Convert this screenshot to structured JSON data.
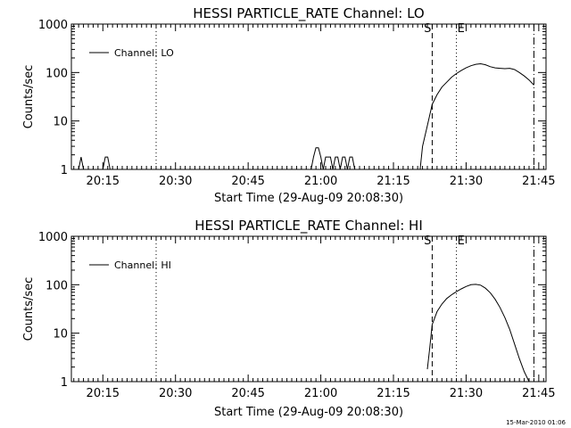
{
  "footer": {
    "timestamp": "15-Mar-2010 01:06"
  },
  "chart_data": [
    {
      "type": "line",
      "title": "HESSI PARTICLE_RATE Channel: LO",
      "xlabel": "Start Time (29-Aug-09 20:08:30)",
      "ylabel": "Counts/sec",
      "yscale": "log",
      "xlim": [
        "20:08:30",
        "21:46:30"
      ],
      "ylim": [
        1,
        1000
      ],
      "xticks": [
        "20:15",
        "20:30",
        "20:45",
        "21:00",
        "21:15",
        "21:30",
        "21:45"
      ],
      "yticks": [
        "1",
        "10",
        "100",
        "1000"
      ],
      "grid": false,
      "legend": {
        "position": "top-left",
        "label": "Channel: LO"
      },
      "markers": [
        {
          "time": "20:26:00",
          "style": "dotted",
          "label": ""
        },
        {
          "time": "21:23:00",
          "style": "dashed",
          "label": "S"
        },
        {
          "time": "21:28:00",
          "style": "dotted",
          "label": "E"
        },
        {
          "time": "21:44:00",
          "style": "dashdot",
          "label": ""
        }
      ],
      "series": [
        {
          "name": "Channel: LO",
          "x": [
            "20:10:00",
            "20:10:30",
            "20:11:00",
            "20:15:00",
            "20:15:30",
            "20:16:00",
            "20:16:30",
            "20:58:00",
            "20:58:30",
            "20:59:00",
            "20:59:30",
            "21:00:00",
            "21:00:30",
            "21:01:00",
            "21:01:30",
            "21:02:00",
            "21:02:30",
            "21:03:00",
            "21:03:30",
            "21:04:00",
            "21:04:30",
            "21:05:00",
            "21:05:30",
            "21:06:00",
            "21:06:30",
            "21:07:00",
            "21:20:30",
            "21:21:00",
            "21:22:00",
            "21:23:00",
            "21:24:00",
            "21:25:00",
            "21:26:00",
            "21:27:00",
            "21:28:00",
            "21:29:00",
            "21:30:00",
            "21:31:00",
            "21:32:00",
            "21:33:00",
            "21:34:00",
            "21:35:00",
            "21:36:00",
            "21:37:00",
            "21:38:00",
            "21:39:00",
            "21:40:00",
            "21:41:00",
            "21:42:00",
            "21:43:00",
            "21:44:00"
          ],
          "y": [
            1,
            1.8,
            1,
            1,
            1.8,
            1.8,
            1,
            1,
            1.8,
            2.8,
            2.8,
            1.8,
            1,
            1.8,
            1.8,
            1.8,
            1,
            1.8,
            1.8,
            1,
            1.8,
            1.8,
            1,
            1.8,
            1.8,
            1,
            1,
            3,
            8,
            22,
            35,
            50,
            63,
            80,
            95,
            110,
            125,
            138,
            148,
            152,
            145,
            132,
            125,
            122,
            120,
            122,
            115,
            100,
            85,
            70,
            55
          ]
        }
      ]
    },
    {
      "type": "line",
      "title": "HESSI PARTICLE_RATE Channel: HI",
      "xlabel": "Start Time (29-Aug-09 20:08:30)",
      "ylabel": "Counts/sec",
      "yscale": "log",
      "xlim": [
        "20:08:30",
        "21:46:30"
      ],
      "ylim": [
        1,
        1000
      ],
      "xticks": [
        "20:15",
        "20:30",
        "20:45",
        "21:00",
        "21:15",
        "21:30",
        "21:45"
      ],
      "yticks": [
        "1",
        "10",
        "100",
        "1000"
      ],
      "grid": false,
      "legend": {
        "position": "top-left",
        "label": "Channel: HI"
      },
      "markers": [
        {
          "time": "20:26:00",
          "style": "dotted",
          "label": ""
        },
        {
          "time": "21:23:00",
          "style": "dashed",
          "label": "S"
        },
        {
          "time": "21:28:00",
          "style": "dotted",
          "label": "E"
        },
        {
          "time": "21:44:00",
          "style": "dashdot",
          "label": ""
        }
      ],
      "series": [
        {
          "name": "Channel: HI",
          "x": [
            "21:22:00",
            "21:22:30",
            "21:23:00",
            "21:24:00",
            "21:25:00",
            "21:26:00",
            "21:27:00",
            "21:28:00",
            "21:29:00",
            "21:30:00",
            "21:31:00",
            "21:32:00",
            "21:33:00",
            "21:34:00",
            "21:35:00",
            "21:36:00",
            "21:37:00",
            "21:38:00",
            "21:39:00",
            "21:40:00",
            "21:41:00",
            "21:42:00",
            "21:43:00"
          ],
          "y": [
            1.8,
            5,
            15,
            28,
            40,
            52,
            62,
            72,
            82,
            92,
            100,
            102,
            98,
            85,
            68,
            50,
            34,
            21,
            12,
            6,
            3,
            1.6,
            1
          ]
        }
      ]
    }
  ]
}
